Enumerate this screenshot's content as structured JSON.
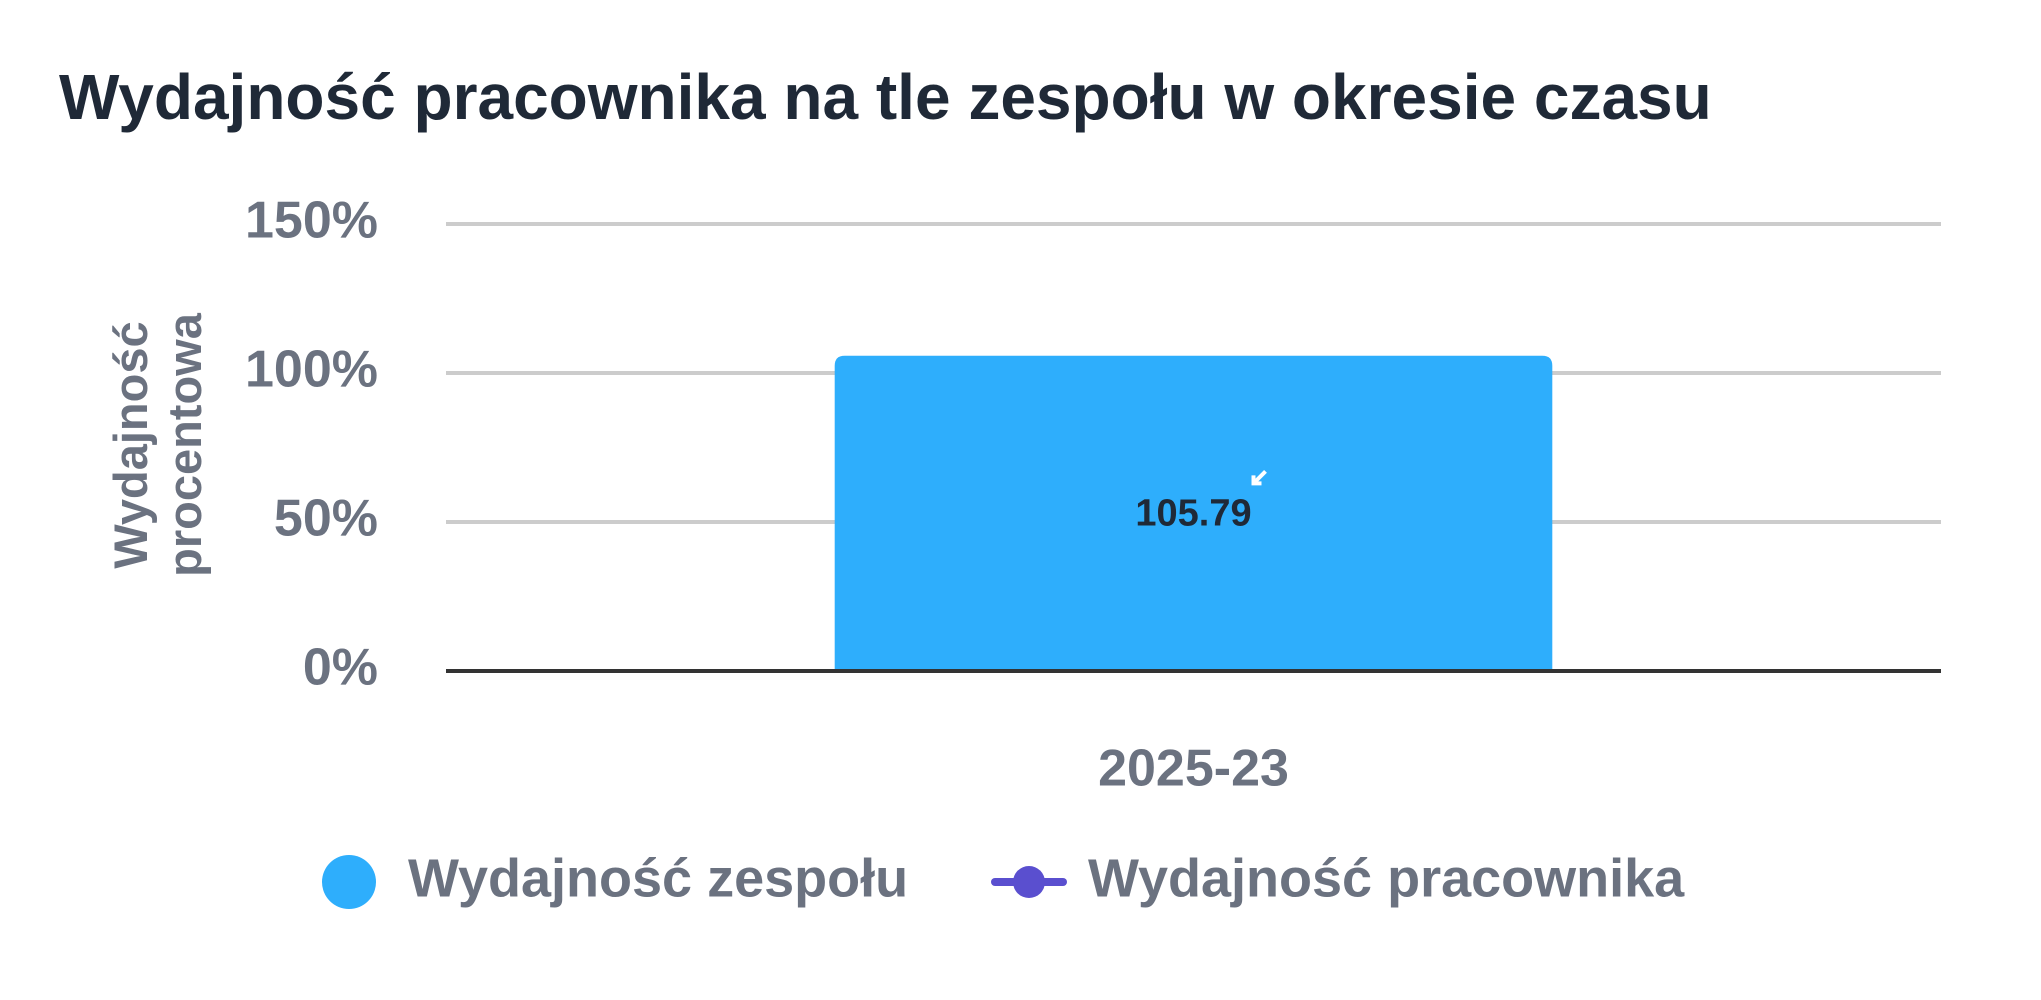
{
  "chart_data": {
    "type": "bar",
    "title": "Wydajność pracownika na tle zespołu w okresie czasu",
    "y_label": "Wydajność procentowa",
    "categories": [
      "2025-23"
    ],
    "series": [
      {
        "name": "Wydajność zespołu",
        "type": "bar",
        "color": "#2eaefc",
        "values": [
          105.79
        ]
      },
      {
        "name": "Wydajność pracownika",
        "type": "line",
        "color": "#5a4fcf",
        "values": [
          null
        ]
      }
    ],
    "ylim": [
      0,
      150
    ],
    "yticks": [
      {
        "value": 0,
        "label": "0%"
      },
      {
        "value": 50,
        "label": "50%"
      },
      {
        "value": 100,
        "label": "100%"
      },
      {
        "value": 150,
        "label": "150%"
      }
    ],
    "grid": true
  }
}
